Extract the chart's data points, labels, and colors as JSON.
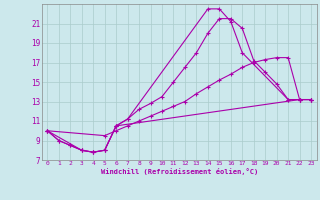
{
  "xlabel": "Windchill (Refroidissement éolien,°C)",
  "bg_color": "#cce8ec",
  "grid_color": "#aacccc",
  "line_color": "#aa00aa",
  "xlim": [
    -0.5,
    23.5
  ],
  "ylim": [
    7,
    23
  ],
  "xticks": [
    0,
    1,
    2,
    3,
    4,
    5,
    6,
    7,
    8,
    9,
    10,
    11,
    12,
    13,
    14,
    15,
    16,
    17,
    18,
    19,
    20,
    21,
    22,
    23
  ],
  "yticks": [
    7,
    9,
    11,
    13,
    15,
    17,
    19,
    21
  ],
  "line1_x": [
    0,
    1,
    2,
    3,
    4,
    5,
    6,
    7,
    8,
    9,
    10,
    11,
    12,
    13,
    14,
    15,
    16,
    17,
    18,
    19,
    20,
    21,
    22,
    23
  ],
  "line1_y": [
    10,
    9,
    8.5,
    8,
    7.8,
    8.0,
    10.5,
    11.2,
    12.2,
    12.8,
    13.5,
    15.0,
    16.5,
    18.0,
    20.0,
    21.5,
    21.5,
    20.5,
    17.2,
    16.0,
    14.8,
    13.2,
    13.2,
    13.2
  ],
  "line2_x": [
    0,
    1,
    2,
    3,
    4,
    5,
    6,
    7,
    14,
    15,
    16,
    17,
    21,
    22,
    23
  ],
  "line2_y": [
    10,
    9,
    8.5,
    8,
    7.8,
    8.0,
    10.5,
    11.2,
    22.5,
    22.5,
    21.2,
    18.0,
    13.2,
    13.2,
    13.2
  ],
  "line3_x": [
    0,
    3,
    4,
    5,
    6,
    22,
    23
  ],
  "line3_y": [
    10,
    8.0,
    7.8,
    8.0,
    10.5,
    13.2,
    13.2
  ],
  "line4_x": [
    0,
    5,
    6,
    7,
    8,
    9,
    10,
    11,
    12,
    13,
    14,
    15,
    16,
    17,
    18,
    19,
    20,
    21,
    22,
    23
  ],
  "line4_y": [
    10,
    9.5,
    10.0,
    10.5,
    11.0,
    11.5,
    12.0,
    12.5,
    13.0,
    13.8,
    14.5,
    15.2,
    15.8,
    16.5,
    17.0,
    17.3,
    17.5,
    17.5,
    13.2,
    13.2
  ]
}
